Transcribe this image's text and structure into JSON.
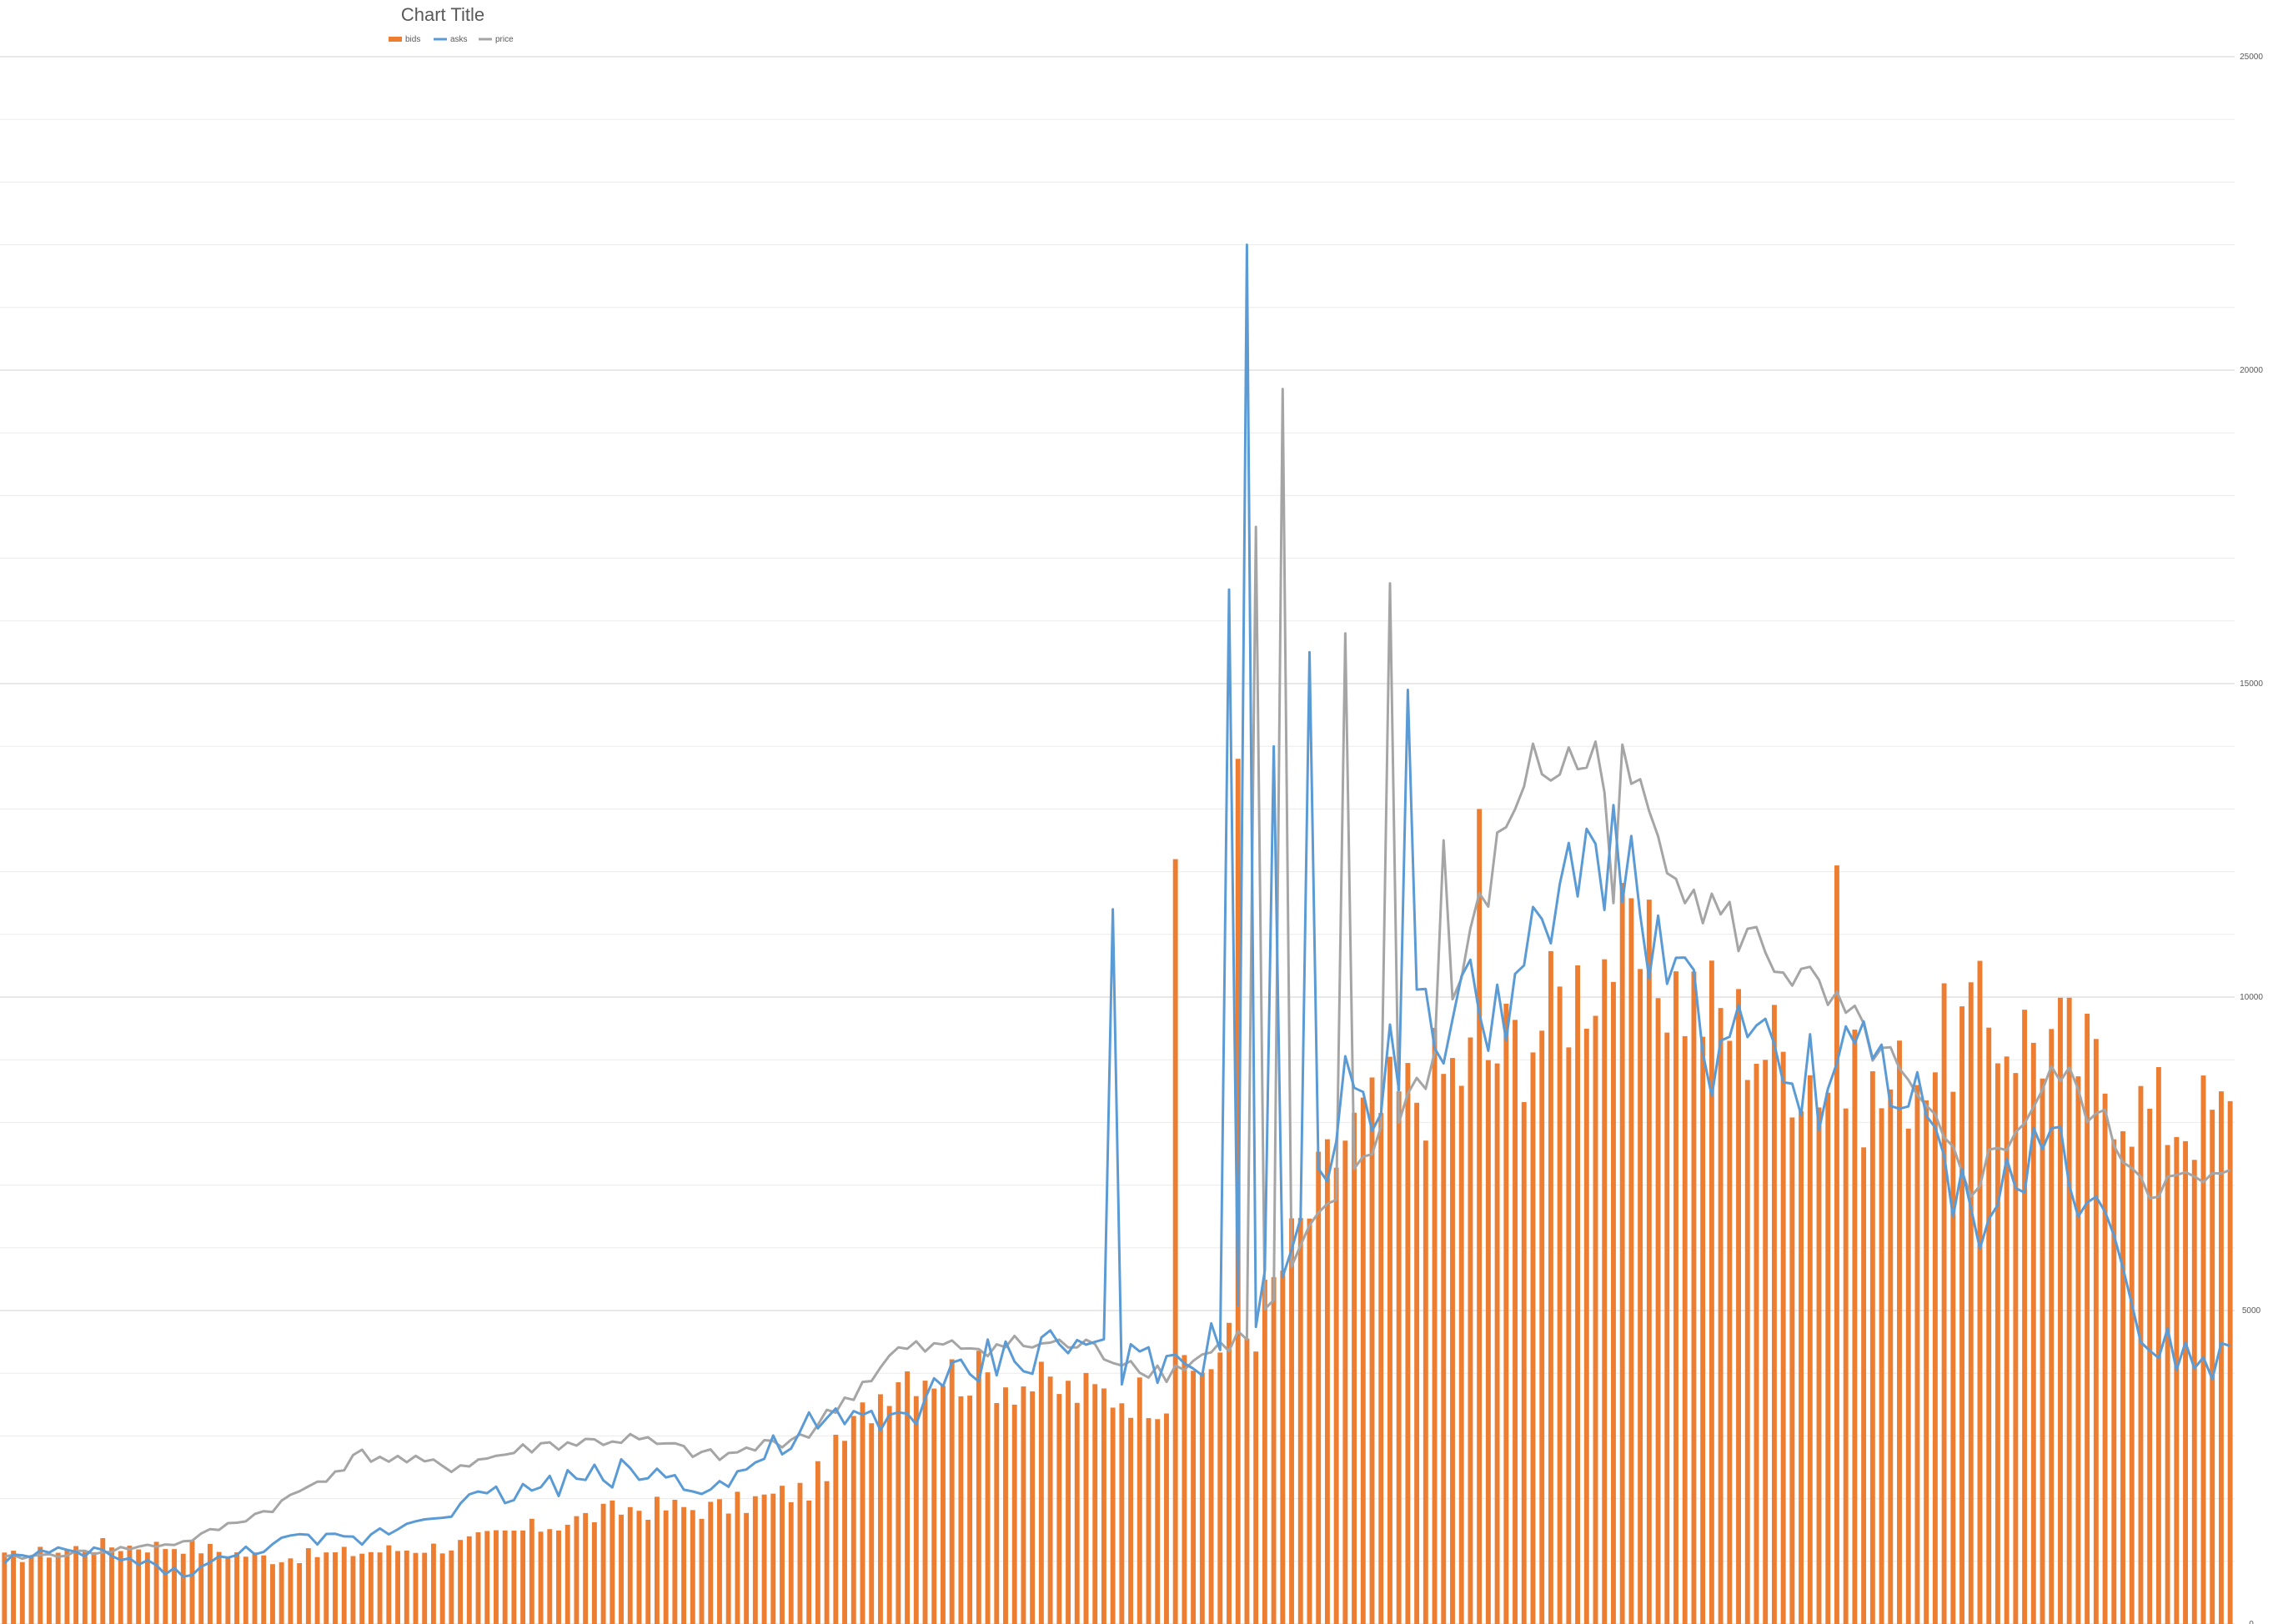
{
  "chart_data": {
    "type": "bar",
    "title": "Chart Title",
    "legend_position": "top-left",
    "grid": true,
    "y_axis_position": "right",
    "ylim": [
      0,
      25000
    ],
    "y_ticks": [
      {
        "value": 0,
        "label": "0"
      },
      {
        "value": 5000,
        "label": "5000"
      },
      {
        "value": 10000,
        "label": "10000"
      },
      {
        "value": 15000,
        "label": "15000"
      },
      {
        "value": 20000,
        "label": "20000"
      },
      {
        "value": 25000,
        "label": "25000"
      }
    ],
    "x_count": 250,
    "series": [
      {
        "name": "bids",
        "type": "bar",
        "color": "#ED7D31",
        "keypoints": [
          [
            0,
            1050
          ],
          [
            10,
            1250
          ],
          [
            20,
            1250
          ],
          [
            30,
            1050
          ],
          [
            40,
            1150
          ],
          [
            50,
            1250
          ],
          [
            60,
            1550
          ],
          [
            70,
            1850
          ],
          [
            80,
            1850
          ],
          [
            90,
            2150
          ],
          [
            100,
            4100
          ],
          [
            110,
            3950
          ],
          [
            120,
            3700
          ],
          [
            130,
            3650
          ],
          [
            140,
            4800
          ],
          [
            150,
            7800
          ],
          [
            160,
            8700
          ],
          [
            170,
            9350
          ],
          [
            180,
            10800
          ],
          [
            190,
            9900
          ],
          [
            200,
            9000
          ],
          [
            210,
            8400
          ],
          [
            220,
            9600
          ],
          [
            230,
            9300
          ],
          [
            240,
            8150
          ],
          [
            250,
            8050
          ]
        ]
      },
      {
        "name": "asks",
        "type": "line",
        "color": "#5B9BD5",
        "keypoints": [
          [
            0,
            1050
          ],
          [
            10,
            1150
          ],
          [
            20,
            800
          ],
          [
            30,
            1300
          ],
          [
            40,
            1350
          ],
          [
            50,
            1900
          ],
          [
            60,
            2200
          ],
          [
            70,
            2450
          ],
          [
            80,
            2200
          ],
          [
            90,
            3100
          ],
          [
            100,
            3300
          ],
          [
            110,
            4200
          ],
          [
            120,
            4500
          ],
          [
            130,
            3900
          ],
          [
            140,
            4900
          ],
          [
            150,
            8400
          ],
          [
            160,
            9500
          ],
          [
            170,
            10200
          ],
          [
            180,
            12600
          ],
          [
            190,
            9400
          ],
          [
            200,
            8600
          ],
          [
            210,
            9100
          ],
          [
            220,
            6400
          ],
          [
            230,
            7800
          ],
          [
            240,
            4600
          ],
          [
            250,
            4150
          ]
        ]
      },
      {
        "name": "price",
        "type": "line",
        "color": "#A5A5A5",
        "keypoints": [
          [
            0,
            1050
          ],
          [
            10,
            1150
          ],
          [
            20,
            1300
          ],
          [
            30,
            1850
          ],
          [
            40,
            2700
          ],
          [
            50,
            2500
          ],
          [
            60,
            2850
          ],
          [
            70,
            2950
          ],
          [
            80,
            2650
          ],
          [
            90,
            3050
          ],
          [
            100,
            4350
          ],
          [
            110,
            4450
          ],
          [
            120,
            4450
          ],
          [
            130,
            4000
          ],
          [
            140,
            4700
          ],
          [
            150,
            7100
          ],
          [
            160,
            9000
          ],
          [
            170,
            13600
          ],
          [
            180,
            13800
          ],
          [
            190,
            11500
          ],
          [
            200,
            10400
          ],
          [
            210,
            9100
          ],
          [
            220,
            7000
          ],
          [
            230,
            8800
          ],
          [
            240,
            7000
          ],
          [
            250,
            7050
          ]
        ]
      }
    ],
    "spikes": [
      {
        "series": "asks",
        "x": 124,
        "y": 11400
      },
      {
        "series": "asks",
        "x": 137,
        "y": 16500
      },
      {
        "series": "asks",
        "x": 139,
        "y": 22000
      },
      {
        "series": "asks",
        "x": 142,
        "y": 14000
      },
      {
        "series": "asks",
        "x": 146,
        "y": 15500
      },
      {
        "series": "asks",
        "x": 157,
        "y": 14900
      },
      {
        "series": "asks",
        "x": 174,
        "y": 11800
      },
      {
        "series": "asks",
        "x": 185,
        "y": 11300
      },
      {
        "series": "price",
        "x": 140,
        "y": 17500
      },
      {
        "series": "price",
        "x": 143,
        "y": 19700
      },
      {
        "series": "price",
        "x": 150,
        "y": 15800
      },
      {
        "series": "price",
        "x": 155,
        "y": 16600
      },
      {
        "series": "price",
        "x": 161,
        "y": 12500
      },
      {
        "series": "price",
        "x": 180,
        "y": 11500
      },
      {
        "series": "bids",
        "x": 138,
        "y": 13800
      },
      {
        "series": "bids",
        "x": 131,
        "y": 12200
      },
      {
        "series": "bids",
        "x": 165,
        "y": 13000
      },
      {
        "series": "bids",
        "x": 205,
        "y": 12100
      }
    ]
  }
}
